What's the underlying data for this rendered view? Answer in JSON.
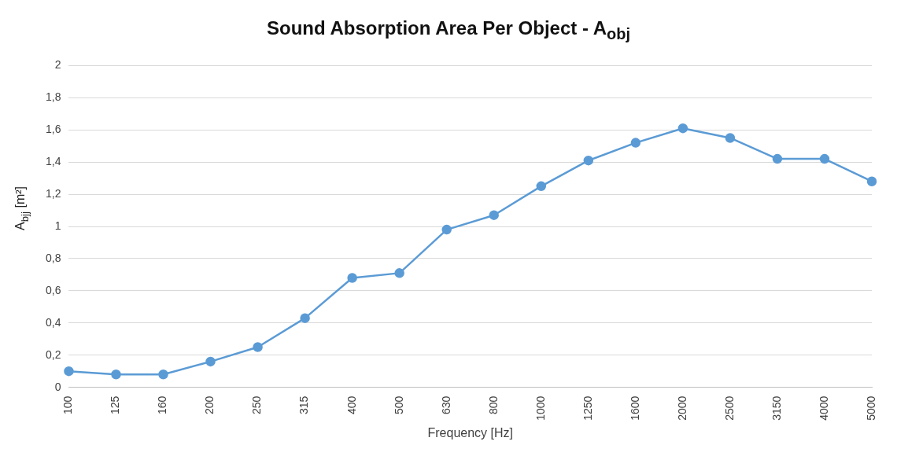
{
  "chart_data": {
    "type": "line",
    "title": "Sound Absorption Area Per Object - A$_{obj}$",
    "xlabel": "Frequency [Hz]",
    "ylabel": "A$_{bjj}$ [m²]",
    "categories": [
      "100",
      "125",
      "160",
      "200",
      "250",
      "315",
      "400",
      "500",
      "630",
      "800",
      "1000",
      "1250",
      "1600",
      "2000",
      "2500",
      "3150",
      "4000",
      "5000"
    ],
    "series": [
      {
        "color": "#5b9bd5",
        "values": [
          0.1,
          0.08,
          0.08,
          0.16,
          0.25,
          0.43,
          0.68,
          0.71,
          0.98,
          1.07,
          1.25,
          1.41,
          1.52,
          1.61,
          1.55,
          1.42,
          1.42,
          1.28
        ]
      }
    ],
    "ylim": [
      0,
      2
    ],
    "yticks": [
      0,
      {
        "value": 0.2,
        "label": "0,2"
      },
      {
        "value": 0.4,
        "label": "0,4"
      },
      {
        "value": 0.6,
        "label": "0,6"
      },
      {
        "value": 0.8,
        "label": "0,8"
      },
      1,
      {
        "value": 1.2,
        "label": "1,2"
      },
      {
        "value": 1.4,
        "label": "1,4"
      },
      {
        "value": 1.6,
        "label": "1,6"
      },
      {
        "value": 1.8,
        "label": "1,8"
      },
      2
    ],
    "grid": "y",
    "marker": "circle",
    "line_style": "solid",
    "legend": false
  }
}
